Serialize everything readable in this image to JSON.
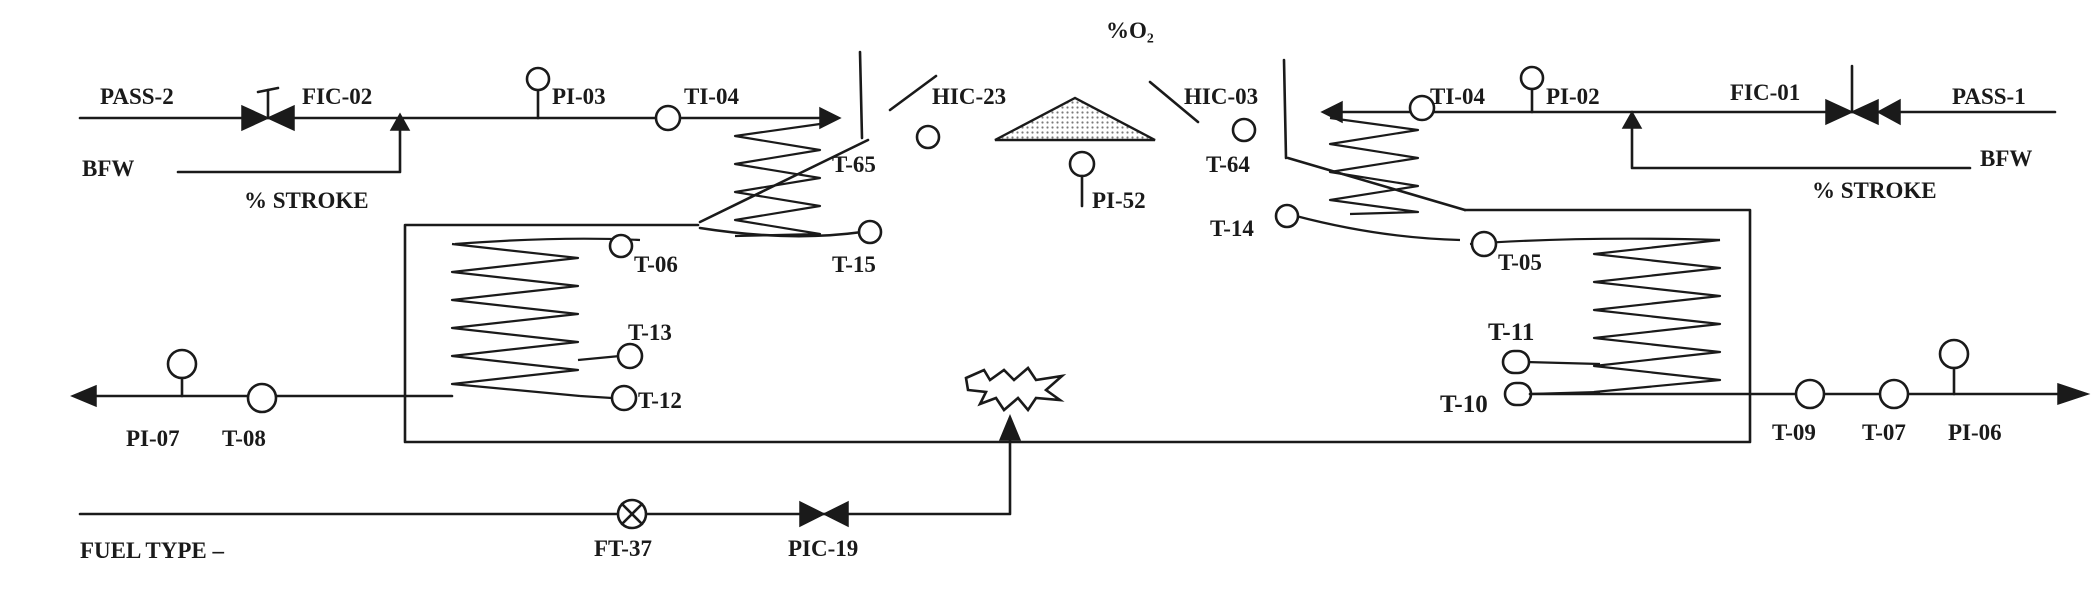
{
  "title_o2": "%O₂",
  "inlets": {
    "pass2": "PASS-2",
    "bfw_left": "BFW",
    "stroke_left": "% STROKE",
    "pass1": "PASS-1",
    "bfw_right": "BFW",
    "stroke_right": "% STROKE"
  },
  "tags": {
    "fic02": "FIC-02",
    "pi03": "PI-03",
    "ti04_left": "TI-04",
    "hic23": "HIC-23",
    "t65": "T-65",
    "hic03": "HIC-03",
    "t64": "T-64",
    "pi52": "PI-52",
    "ti04_right": "TI-04",
    "pi02": "PI-02",
    "fic01": "FIC-01",
    "t15": "T-15",
    "t06": "T-06",
    "t14": "T-14",
    "t05": "T-05",
    "t13": "T-13",
    "t12": "T-12",
    "t11": "T-11",
    "t10": "T-10",
    "pi07": "PI-07",
    "t08": "T-08",
    "t09": "T-09",
    "t07": "T-07",
    "pi06": "PI-06",
    "ft37": "FT-37",
    "pic19": "PIC-19",
    "fuel_type": "FUEL TYPE –"
  },
  "colors": {
    "ink": "#1a1a1a",
    "paper": "#ffffff",
    "hatch": "#9a9a9a"
  }
}
